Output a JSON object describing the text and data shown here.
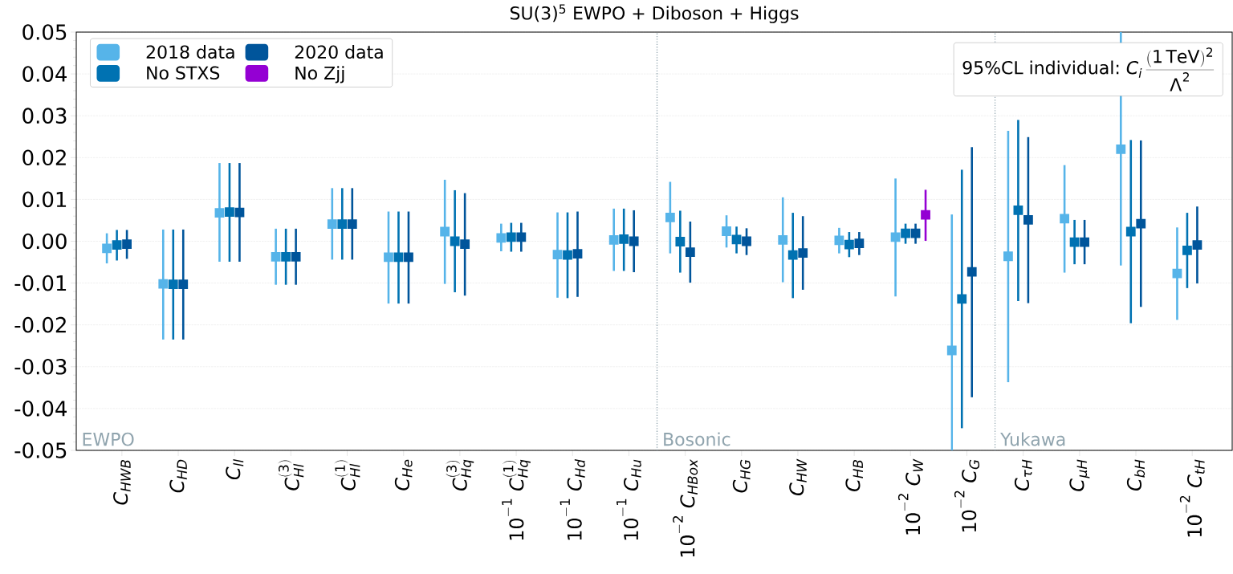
{
  "chart_data": {
    "type": "scatter",
    "title": "SU(3)$^{5}$ EWPO + Diboson + Higgs",
    "categories": [
      "C_{HWB}",
      "C_{HD}",
      "C_{ll}",
      "C_{Hl}^{(3)}",
      "C_{Hl}^{(1)}",
      "C_{He}",
      "C_{Hq}^{(3)}",
      "10^{-1}\\ C_{Hq}^{(1)}",
      "10^{-1}\\ C_{Hd}",
      "10^{-1}\\ C_{Hu}",
      "10^{-2}\\ C_{HBox}",
      "C_{HG}",
      "C_{HW}",
      "C_{HB}",
      "10^{-2}\\ C_{W}",
      "10^{-2}\\ C_{G}",
      "C_{\\tau H}",
      "C_{\\mu H}",
      "C_{bH}",
      "10^{-2}\\ C_{tH}"
    ],
    "series": [
      {
        "name": "2018 data",
        "color": "#56b4e9",
        "values": [
          -0.0017,
          -0.0102,
          0.0068,
          -0.0037,
          0.0041,
          -0.0038,
          0.0023,
          0.0008,
          -0.0032,
          0.0003,
          0.0057,
          0.0024,
          0.0003,
          0.0002,
          0.001,
          -0.0261,
          -0.0036,
          0.0054,
          0.022,
          -0.0077
        ],
        "errors": [
          [
            -0.0053,
            0.0019
          ],
          [
            -0.0235,
            0.0028
          ],
          [
            -0.0049,
            0.0187
          ],
          [
            -0.0104,
            0.003
          ],
          [
            -0.0044,
            0.0127
          ],
          [
            -0.0149,
            0.0071
          ],
          [
            -0.0102,
            0.0147
          ],
          [
            -0.0024,
            0.0042
          ],
          [
            -0.0135,
            0.0069
          ],
          [
            -0.0071,
            0.0078
          ],
          [
            -0.0029,
            0.0142
          ],
          [
            -0.0015,
            0.0062
          ],
          [
            -0.0098,
            0.0105
          ],
          [
            -0.0029,
            0.0032
          ],
          [
            -0.0132,
            0.015
          ],
          [
            -0.05,
            0.0064
          ],
          [
            -0.0337,
            0.0264
          ],
          [
            -0.0075,
            0.0182
          ],
          [
            -0.0058,
            0.05
          ],
          [
            -0.0188,
            0.0033
          ]
        ]
      },
      {
        "name": "No STXS",
        "color": "#0072b2",
        "values": [
          -0.0009,
          -0.0103,
          0.007,
          -0.0037,
          0.0041,
          -0.0038,
          0.0,
          0.001,
          -0.0033,
          0.0005,
          -0.0001,
          0.0004,
          -0.0033,
          -0.0008,
          0.0019,
          -0.0138,
          0.0074,
          -0.0002,
          0.0023,
          -0.0022
        ],
        "errors": [
          [
            -0.0046,
            0.0027
          ],
          [
            -0.0235,
            0.0028
          ],
          [
            -0.0049,
            0.0187
          ],
          [
            -0.0104,
            0.003
          ],
          [
            -0.0044,
            0.0127
          ],
          [
            -0.0149,
            0.0071
          ],
          [
            -0.0122,
            0.0122
          ],
          [
            -0.0025,
            0.0044
          ],
          [
            -0.0136,
            0.0069
          ],
          [
            -0.0071,
            0.0078
          ],
          [
            -0.0075,
            0.0073
          ],
          [
            -0.0029,
            0.0035
          ],
          [
            -0.0136,
            0.0068
          ],
          [
            -0.0038,
            0.0022
          ],
          [
            -0.0006,
            0.0042
          ],
          [
            -0.0447,
            0.0171
          ],
          [
            -0.0143,
            0.029
          ],
          [
            -0.0055,
            0.0051
          ],
          [
            -0.0196,
            0.0242
          ],
          [
            -0.0112,
            0.0068
          ]
        ]
      },
      {
        "name": "2020 data",
        "color": "#00559b",
        "values": [
          -0.0007,
          -0.0103,
          0.0069,
          -0.0037,
          0.0041,
          -0.0038,
          -0.0007,
          0.001,
          -0.003,
          0.0,
          -0.0026,
          0.0,
          -0.0028,
          -0.0005,
          0.0019,
          -0.0073,
          0.0051,
          -0.0002,
          0.0042,
          -0.0009
        ],
        "errors": [
          [
            -0.0042,
            0.0027
          ],
          [
            -0.0235,
            0.0028
          ],
          [
            -0.0049,
            0.0187
          ],
          [
            -0.0104,
            0.003
          ],
          [
            -0.0044,
            0.0127
          ],
          [
            -0.0149,
            0.0071
          ],
          [
            -0.013,
            0.0115
          ],
          [
            -0.0025,
            0.0044
          ],
          [
            -0.0133,
            0.0071
          ],
          [
            -0.0074,
            0.0074
          ],
          [
            -0.0099,
            0.0047
          ],
          [
            -0.0033,
            0.0031
          ],
          [
            -0.0116,
            0.006
          ],
          [
            -0.0033,
            0.0022
          ],
          [
            -0.0006,
            0.0042
          ],
          [
            -0.0373,
            0.0225
          ],
          [
            -0.0148,
            0.0249
          ],
          [
            -0.0055,
            0.0051
          ],
          [
            -0.0157,
            0.0241
          ],
          [
            -0.0101,
            0.0083
          ]
        ]
      },
      {
        "name": "No Zjj",
        "color": "#9400d3",
        "values": [
          null,
          null,
          null,
          null,
          null,
          null,
          null,
          null,
          null,
          null,
          null,
          null,
          null,
          null,
          0.0063,
          null,
          null,
          null,
          null,
          null
        ],
        "errors": [
          null,
          null,
          null,
          null,
          null,
          null,
          null,
          null,
          null,
          null,
          null,
          null,
          null,
          null,
          [
            0.0001,
            0.0123
          ],
          null,
          null,
          null,
          null,
          null
        ]
      }
    ],
    "ylim": [
      -0.05,
      0.05
    ],
    "yticks": [
      -0.05,
      -0.04,
      -0.03,
      -0.02,
      -0.01,
      {
        "value": 0,
        "label": "0.00"
      },
      0.01,
      0.02,
      0.03,
      0.04,
      0.05
    ],
    "grid": "y",
    "legend": "top left",
    "marker": "square",
    "annotations": [
      "EWPO",
      "Bosonic",
      "Yukawa",
      "95%CL individual:",
      "C_i\\,\\frac{(1\\,\\mathrm{TeV})^2}{\\Lambda^2}"
    ]
  }
}
